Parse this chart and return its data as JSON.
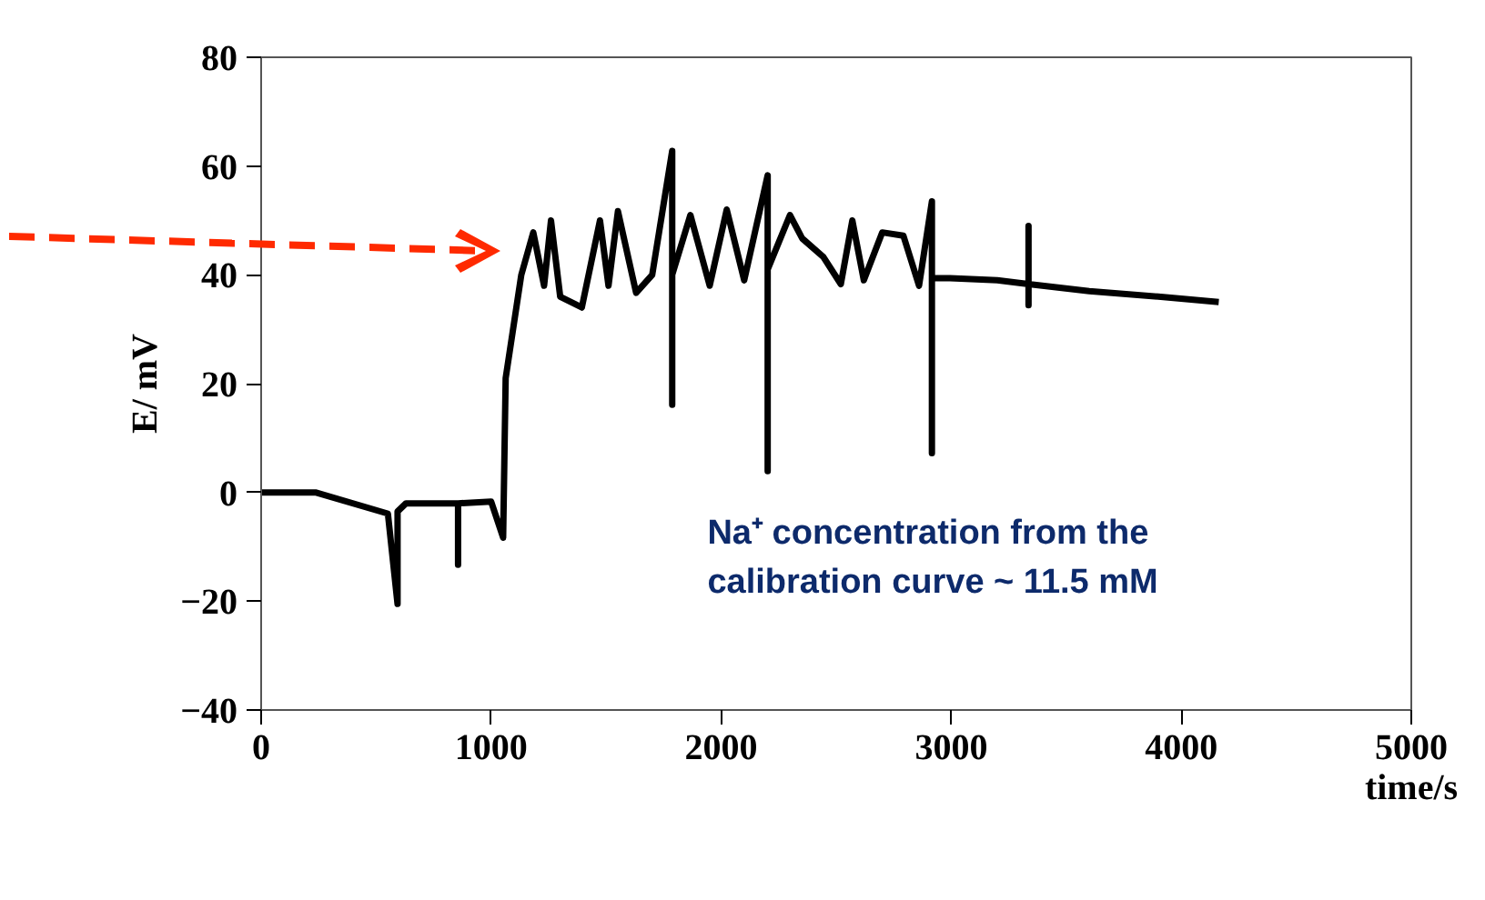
{
  "chart_data": {
    "type": "line",
    "xlabel": "time/s",
    "ylabel": "E/ mV",
    "xlim": [
      0,
      5000
    ],
    "ylim": [
      -40,
      80
    ],
    "xticks": [
      0,
      1000,
      2000,
      3000,
      4000,
      5000
    ],
    "yticks": [
      -40,
      -20,
      0,
      20,
      40,
      60,
      80
    ],
    "grid": false,
    "marker": "none",
    "line_style": "solid",
    "annotations": [
      "Na⁺ concentration from the\ncalibration curve ~ 11.5 mM"
    ],
    "series": [
      {
        "color": "#000000",
        "x": [
          0,
          236,
          551,
          593,
          593,
          630,
          856,
          856,
          856,
          1000,
          1052,
          1063,
          1131,
          1183,
          1230,
          1260,
          1300,
          1394,
          1473,
          1510,
          1551,
          1630,
          1700,
          1787,
          1787,
          1787,
          1866,
          1950,
          2024,
          2100,
          2202,
          2202,
          2202,
          2299,
          2352,
          2444,
          2520,
          2570,
          2620,
          2700,
          2792,
          2860,
          2916,
          2916,
          2916,
          2995,
          3200,
          3336,
          3336,
          3336,
          3336,
          3600,
          3900,
          4163
        ],
        "values": [
          0,
          0,
          -3.9,
          -20.5,
          -3.5,
          -2,
          -2,
          -13.3,
          -2,
          -1.7,
          -8.3,
          21,
          40,
          47.8,
          38,
          50,
          36,
          34,
          50,
          38,
          51.7,
          36.7,
          40,
          62.8,
          16.1,
          40,
          51,
          38,
          52,
          39,
          58.3,
          3.9,
          41,
          51,
          46.7,
          43.3,
          38.3,
          50,
          39,
          47.8,
          47.2,
          38,
          53.5,
          7.2,
          39.4,
          39.4,
          39,
          38.3,
          49,
          34.4,
          38.3,
          37,
          36,
          35
        ]
      }
    ]
  }
}
